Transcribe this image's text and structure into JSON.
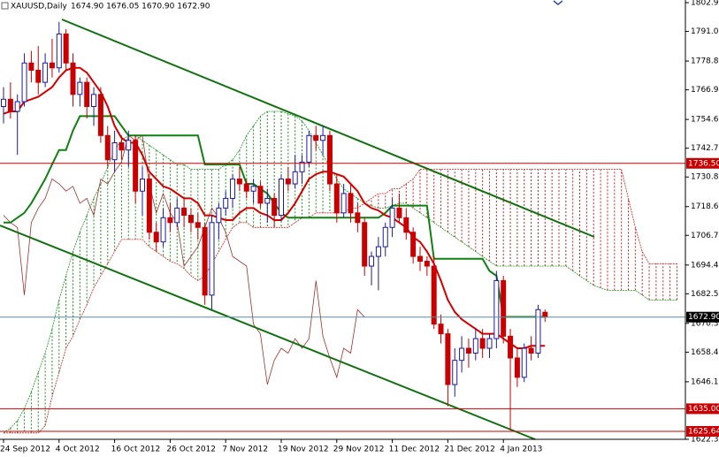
{
  "chart_data": {
    "type": "candlestick",
    "header_symbol": "XAUUSD,Daily",
    "header_ohlc": "1674.90 1676.05 1670.90 1672.90",
    "categories": [
      "24 Sep 2012",
      null,
      null,
      null,
      null,
      null,
      null,
      null,
      "4 Oct 2012",
      null,
      null,
      null,
      null,
      null,
      null,
      null,
      "16 Oct 2012",
      null,
      null,
      null,
      null,
      null,
      null,
      null,
      "26 Oct 2012",
      null,
      null,
      null,
      null,
      null,
      null,
      null,
      "7 Nov 2012",
      null,
      null,
      null,
      null,
      null,
      null,
      null,
      "19 Nov 2012",
      null,
      null,
      null,
      null,
      null,
      null,
      null,
      "29 Nov 2012",
      null,
      null,
      null,
      null,
      null,
      null,
      null,
      "11 Dec 2012",
      null,
      null,
      null,
      null,
      null,
      null,
      null,
      "21 Dec 2012",
      null,
      null,
      null,
      null,
      null,
      null,
      null,
      "4 Jan 2013",
      null,
      null,
      null,
      null,
      null,
      null
    ],
    "ohlc": {
      "up_color": "#1a1aa0",
      "down_color": "#c80000",
      "open": [
        1760,
        1763,
        1758,
        1762,
        1778,
        1775,
        1770,
        1778,
        1776,
        1790,
        1778,
        1765,
        1770,
        1760,
        1765,
        1748,
        1738,
        1745,
        1742,
        1746,
        1725,
        1730,
        1708,
        1704,
        1714,
        1712,
        1718,
        1715,
        1712,
        1710,
        1682,
        1712,
        1718,
        1722,
        1730,
        1728,
        1725,
        1727,
        1720,
        1722,
        1715,
        1730,
        1728,
        1733,
        1737,
        1748,
        1746,
        1748,
        1728,
        1716,
        1724,
        1716,
        1712,
        1694,
        1698,
        1702,
        1710,
        1718,
        1714,
        1708,
        1698,
        1696,
        1694,
        1670,
        1666,
        1645,
        1655,
        1660,
        1658,
        1664,
        1660,
        1664,
        1688,
        1665,
        1656,
        1648,
        1660,
        1658,
        1674.9
      ],
      "high": [
        1768,
        1770,
        1765,
        1782,
        1783,
        1785,
        1782,
        1788,
        1795,
        1792,
        1782,
        1772,
        1772,
        1768,
        1768,
        1752,
        1750,
        1748,
        1750,
        1748,
        1735,
        1732,
        1712,
        1718,
        1720,
        1722,
        1722,
        1718,
        1716,
        1712,
        1715,
        1720,
        1725,
        1732,
        1735,
        1730,
        1730,
        1729,
        1726,
        1724,
        1732,
        1735,
        1740,
        1740,
        1750,
        1752,
        1752,
        1750,
        1732,
        1728,
        1728,
        1720,
        1714,
        1700,
        1706,
        1712,
        1722,
        1724,
        1718,
        1710,
        1702,
        1698,
        1698,
        1674,
        1668,
        1660,
        1665,
        1664,
        1668,
        1668,
        1666,
        1692,
        1690,
        1668,
        1660,
        1662,
        1665,
        1678,
        1676.05
      ],
      "low": [
        1753,
        1755,
        1740,
        1760,
        1770,
        1765,
        1768,
        1772,
        1774,
        1775,
        1760,
        1760,
        1755,
        1752,
        1745,
        1735,
        1733,
        1738,
        1735,
        1720,
        1715,
        1705,
        1700,
        1702,
        1708,
        1710,
        1710,
        1708,
        1705,
        1678,
        1676,
        1705,
        1715,
        1718,
        1725,
        1722,
        1720,
        1718,
        1712,
        1710,
        1713,
        1725,
        1726,
        1728,
        1735,
        1742,
        1740,
        1725,
        1712,
        1714,
        1712,
        1708,
        1690,
        1686,
        1684,
        1698,
        1706,
        1712,
        1705,
        1695,
        1692,
        1690,
        1668,
        1662,
        1636,
        1640,
        1650,
        1652,
        1655,
        1656,
        1656,
        1660,
        1662,
        1626,
        1644,
        1646,
        1655,
        1656,
        1670.9
      ],
      "close": [
        1763,
        1758,
        1762,
        1778,
        1775,
        1770,
        1778,
        1776,
        1790,
        1778,
        1765,
        1770,
        1760,
        1765,
        1748,
        1738,
        1745,
        1742,
        1746,
        1725,
        1730,
        1708,
        1704,
        1714,
        1712,
        1718,
        1715,
        1712,
        1710,
        1682,
        1712,
        1718,
        1722,
        1730,
        1728,
        1725,
        1727,
        1720,
        1722,
        1715,
        1730,
        1728,
        1733,
        1737,
        1748,
        1746,
        1748,
        1728,
        1716,
        1724,
        1716,
        1712,
        1694,
        1698,
        1702,
        1710,
        1718,
        1714,
        1708,
        1698,
        1696,
        1694,
        1670,
        1666,
        1645,
        1655,
        1660,
        1658,
        1664,
        1660,
        1664,
        1688,
        1665,
        1656,
        1648,
        1660,
        1658,
        1676,
        1672.9
      ]
    },
    "tenkan": {
      "color": "#d40000",
      "values": [
        1757,
        1758,
        1758,
        1762,
        1763,
        1764,
        1766,
        1768,
        1772,
        1775,
        1776,
        1776,
        1774,
        1770,
        1766,
        1760,
        1752,
        1747,
        1745,
        1745,
        1740,
        1733,
        1730,
        1727,
        1726,
        1724,
        1722,
        1722,
        1720,
        1715,
        1715,
        1714,
        1713,
        1713,
        1716,
        1718,
        1718,
        1716,
        1715,
        1713,
        1713,
        1716,
        1720,
        1725,
        1730,
        1732,
        1733,
        1733,
        1732,
        1731,
        1728,
        1725,
        1720,
        1718,
        1717,
        1715,
        1714,
        1712,
        1710,
        1706,
        1704,
        1700,
        1695,
        1688,
        1680,
        1675,
        1672,
        1670,
        1668,
        1666,
        1666,
        1666,
        1664,
        1662,
        1660,
        1660,
        1661,
        1661,
        1661
      ]
    },
    "kijun": {
      "color": "#108010",
      "values": [
        1712,
        1712,
        1714,
        1716,
        1720,
        1725,
        1730,
        1736,
        1742,
        1742,
        1750,
        1756,
        1756,
        1756,
        1756,
        1756,
        1756,
        1752,
        1748,
        1748,
        1748,
        1748,
        1748,
        1748,
        1748,
        1748,
        1748,
        1748,
        1748,
        1736,
        1736,
        1736,
        1736,
        1736,
        1736,
        1728,
        1728,
        1726,
        1724,
        1720,
        1716,
        1714,
        1714,
        1714,
        1714,
        1714,
        1714,
        1714,
        1714,
        1714,
        1714,
        1714,
        1714,
        1714,
        1714,
        1716,
        1719,
        1719,
        1719,
        1719,
        1719,
        1719,
        1697,
        1697,
        1697,
        1697,
        1697,
        1697,
        1697,
        1697,
        1692,
        1690,
        1673,
        1673,
        1673,
        1673,
        1673,
        1673,
        1673
      ]
    },
    "chikou": {
      "color": "#a03030",
      "values": [
        1715,
        1712,
        1710,
        1682,
        1712,
        1718,
        1722,
        1730,
        1728,
        1725,
        1727,
        1720,
        1722,
        1715,
        1730,
        1728,
        1733,
        1737,
        1748,
        1746,
        1748,
        1728,
        1716,
        1724,
        1716,
        1712,
        1694,
        1698,
        1702,
        1710,
        1718,
        1714,
        1708,
        1698,
        1696,
        1694,
        1670,
        1666,
        1645,
        1655,
        1660,
        1658,
        1664,
        1660,
        1664,
        1688,
        1665,
        1656,
        1648,
        1660,
        1658,
        1676,
        1672.9
      ]
    },
    "cloud": {
      "bull_color": "#1f8f1f",
      "bear_color": "#cc2020",
      "span_a": [
        1625,
        1627,
        1630,
        1635,
        1642,
        1650,
        1658,
        1668,
        1680,
        1690,
        1700,
        1708,
        1715,
        1722,
        1728,
        1735,
        1742,
        1746,
        1748,
        1748,
        1746,
        1744,
        1742,
        1740,
        1738,
        1736,
        1736,
        1734,
        1734,
        1734,
        1734,
        1734,
        1736,
        1738,
        1742,
        1748,
        1752,
        1756,
        1758,
        1758,
        1758,
        1757,
        1756,
        1754,
        1750,
        1745,
        1740,
        1735,
        1730,
        1726,
        1724,
        1722,
        1720,
        1719,
        1718,
        1718,
        1719,
        1720,
        1720,
        1718,
        1716,
        1714,
        1712,
        1710,
        1708,
        1706,
        1704,
        1702,
        1700,
        1698,
        1696,
        1694,
        1694,
        1694,
        1694,
        1694,
        1694,
        1694,
        1694,
        1694,
        1694,
        1694,
        1692,
        1690,
        1688,
        1686,
        1685,
        1684,
        1684,
        1684,
        1684,
        1684,
        1682,
        1680,
        1680,
        1680,
        1680,
        1680
      ],
      "span_b": [
        1625,
        1625,
        1625,
        1625,
        1625,
        1625,
        1628,
        1640,
        1650,
        1660,
        1665,
        1672,
        1678,
        1685,
        1690,
        1695,
        1700,
        1705,
        1705,
        1705,
        1705,
        1702,
        1700,
        1698,
        1696,
        1695,
        1693,
        1690,
        1688,
        1690,
        1695,
        1700,
        1705,
        1710,
        1712,
        1712,
        1710,
        1710,
        1710,
        1710,
        1710,
        1710,
        1712,
        1714,
        1714,
        1716,
        1716,
        1716,
        1716,
        1716,
        1718,
        1718,
        1720,
        1722,
        1724,
        1724,
        1726,
        1726,
        1728,
        1730,
        1734,
        1734,
        1734,
        1734,
        1734,
        1734,
        1734,
        1734,
        1734,
        1734,
        1734,
        1734,
        1734,
        1734,
        1734,
        1734,
        1734,
        1734,
        1734,
        1734,
        1734,
        1734,
        1734,
        1734,
        1734,
        1734,
        1734,
        1734,
        1734,
        1734,
        1722,
        1710,
        1700,
        1695,
        1695,
        1695,
        1695,
        1695
      ]
    },
    "levels": [
      {
        "value": 1736.5,
        "label": "1736.50",
        "color": "#c80000",
        "line_color": "#c80000"
      },
      {
        "value": 1672.9,
        "label": "1672.90",
        "color": "#000000",
        "line_color": "#5a8ca0"
      },
      {
        "value": 1635,
        "label": "1635.00",
        "color": "#c80000",
        "line_color": "#c80000"
      },
      {
        "value": 1625.64,
        "label": "1625.64",
        "color": "#c80000",
        "line_color": "#c80000"
      }
    ],
    "ylim": [
      1622.35,
      1804.05
    ],
    "yticks": [
      1802.95,
      1791.05,
      {
        "value": 1778.8,
        "label": "1778.80"
      },
      {
        "value": 1766.9,
        "label": "1766.90"
      },
      1754.65,
      1742.75,
      1730.85,
      {
        "value": 1718.6,
        "label": "1718.60"
      },
      {
        "value": 1706.7,
        "label": "1706.70"
      },
      1694.45,
      1682.55,
      {
        "value": 1670.3,
        "label": "1670.30"
      },
      {
        "value": 1658.4,
        "label": "1658.40"
      },
      1646.15,
      1622.35
    ]
  }
}
